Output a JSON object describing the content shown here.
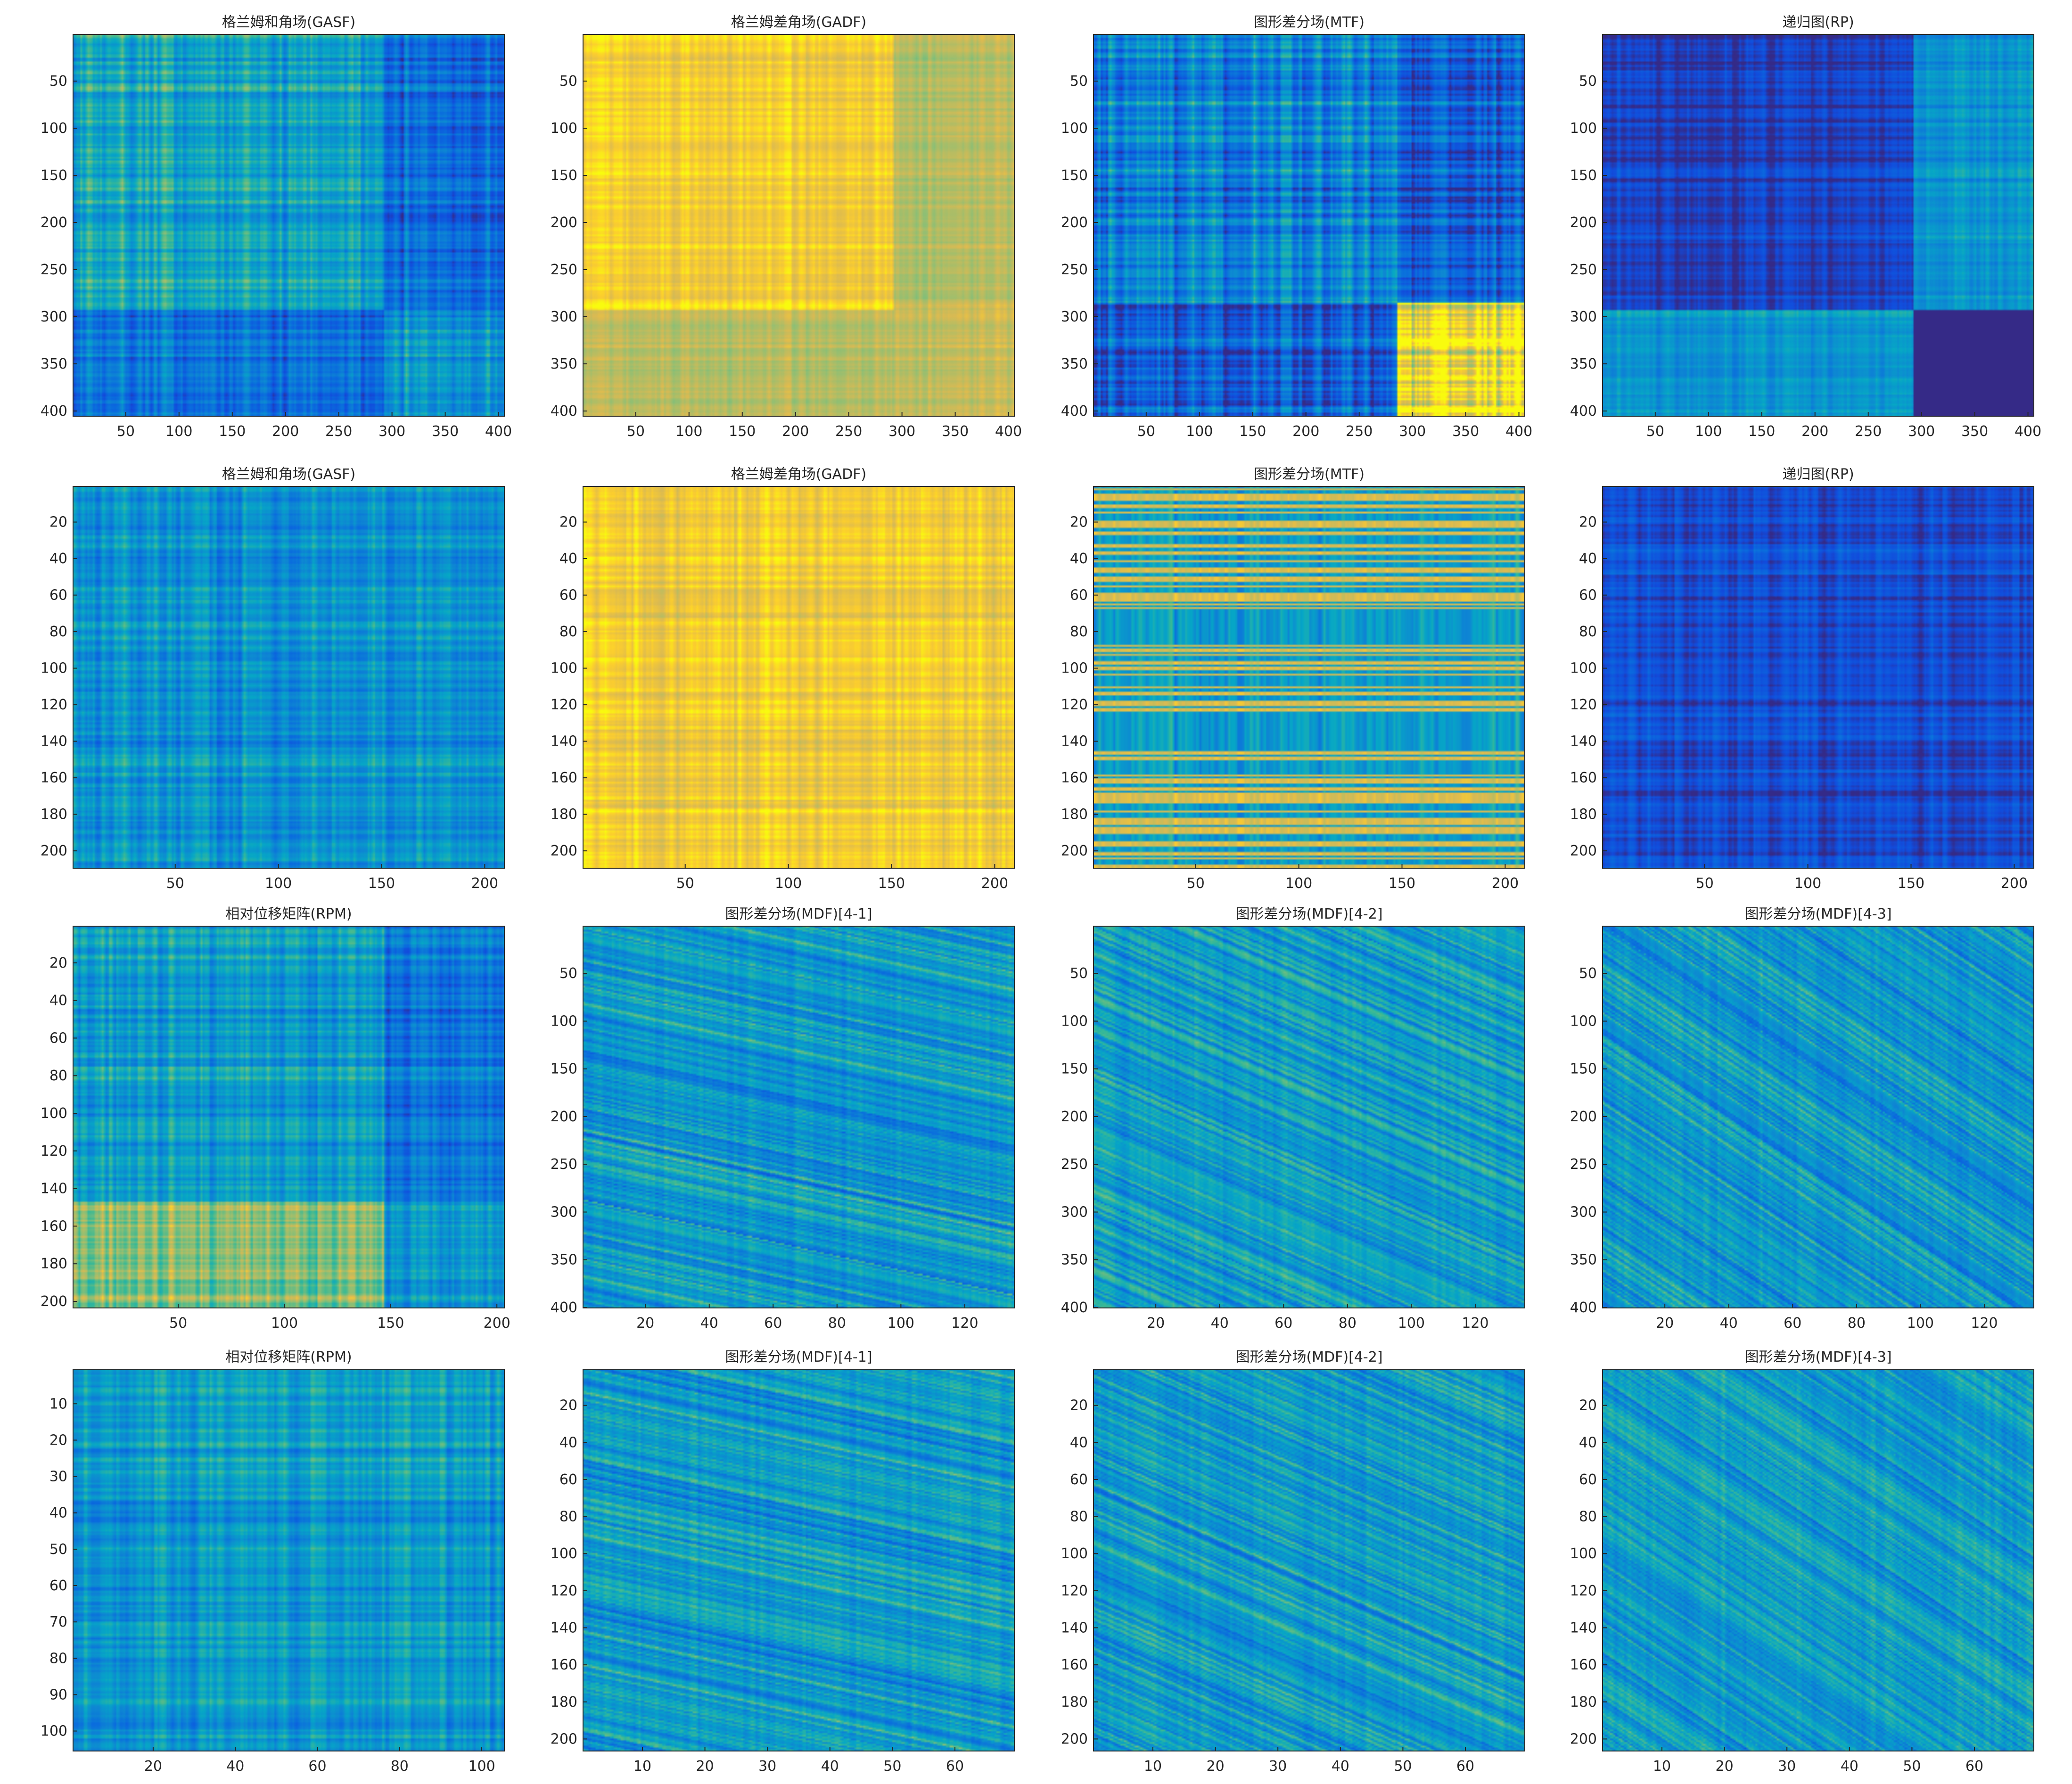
{
  "figure": {
    "type": "image-grid",
    "rows": 4,
    "cols": 4
  },
  "chart_data": [
    {
      "id": "r1c1",
      "type": "heatmap",
      "title": "格兰姆和角场(GASF)",
      "xlim": [
        0.5,
        405.5
      ],
      "ylim": [
        0.5,
        405.5
      ],
      "xticks": [
        50,
        100,
        150,
        200,
        250,
        300,
        350,
        400
      ],
      "yticks": [
        50,
        100,
        150,
        200,
        250,
        300,
        350,
        400
      ],
      "colormap": "parula",
      "pattern": "gasf",
      "seed": 11,
      "bias": 0.48,
      "contrast": 0.55,
      "breaks": [
        0.72
      ],
      "shift": -0.22,
      "quadrant": -0.05
    },
    {
      "id": "r1c2",
      "type": "heatmap",
      "title": "格兰姆差角场(GADF)",
      "xlim": [
        0.5,
        405.5
      ],
      "ylim": [
        0.5,
        405.5
      ],
      "xticks": [
        50,
        100,
        150,
        200,
        250,
        300,
        350,
        400
      ],
      "yticks": [
        50,
        100,
        150,
        200,
        250,
        300,
        350,
        400
      ],
      "colormap": "parula",
      "pattern": "gadf",
      "seed": 12,
      "bias": 0.93,
      "contrast": 0.18,
      "breaks": [
        0.72
      ],
      "shift": -0.12,
      "quadrant": -0.1
    },
    {
      "id": "r1c3",
      "type": "heatmap",
      "title": "图形差分场(MTF)",
      "xlim": [
        0.5,
        405.5
      ],
      "ylim": [
        0.5,
        405.5
      ],
      "xticks": [
        50,
        100,
        150,
        200,
        250,
        300,
        350,
        400
      ],
      "yticks": [
        50,
        100,
        150,
        200,
        250,
        300,
        350,
        400
      ],
      "colormap": "parula",
      "pattern": "mtf",
      "seed": 13,
      "bias": 0.35,
      "contrast": 0.75,
      "breaks": [
        0.7,
        0.71
      ],
      "shift": -0.15,
      "quadrant": 0.6
    },
    {
      "id": "r1c4",
      "type": "heatmap",
      "title": "递归图(RP)",
      "xlim": [
        0.5,
        405.5
      ],
      "ylim": [
        0.5,
        405.5
      ],
      "xticks": [
        50,
        100,
        150,
        200,
        250,
        300,
        350,
        400
      ],
      "yticks": [
        50,
        100,
        150,
        200,
        250,
        300,
        350,
        400
      ],
      "colormap": "parula",
      "pattern": "rp",
      "seed": 14,
      "bias": 0.08,
      "contrast": 0.35,
      "breaks": [
        0.72
      ],
      "shift": 0.35,
      "quadrant": -0.3
    },
    {
      "id": "r2c1",
      "type": "heatmap",
      "title": "格兰姆和角场(GASF)",
      "xlim": [
        0.5,
        209.5
      ],
      "ylim": [
        0.5,
        209.5
      ],
      "xticks": [
        50,
        100,
        150,
        200
      ],
      "yticks": [
        20,
        40,
        60,
        80,
        100,
        120,
        140,
        160,
        180,
        200
      ],
      "colormap": "parula",
      "pattern": "gasf",
      "seed": 21,
      "bias": 0.42,
      "contrast": 0.5,
      "breaks": [],
      "shift": 0,
      "quadrant": 0
    },
    {
      "id": "r2c2",
      "type": "heatmap",
      "title": "格兰姆差角场(GADF)",
      "xlim": [
        0.5,
        209.5
      ],
      "ylim": [
        0.5,
        209.5
      ],
      "xticks": [
        50,
        100,
        150,
        200
      ],
      "yticks": [
        20,
        40,
        60,
        80,
        100,
        120,
        140,
        160,
        180,
        200
      ],
      "colormap": "parula",
      "pattern": "gadf",
      "seed": 22,
      "bias": 0.92,
      "contrast": 0.22,
      "breaks": [],
      "shift": 0,
      "quadrant": 0
    },
    {
      "id": "r2c3",
      "type": "heatmap",
      "title": "图形差分场(MTF)",
      "xlim": [
        0.5,
        209.5
      ],
      "ylim": [
        0.5,
        209.5
      ],
      "xticks": [
        50,
        100,
        150,
        200
      ],
      "yticks": [
        20,
        40,
        60,
        80,
        100,
        120,
        140,
        160,
        180,
        200
      ],
      "colormap": "parula",
      "pattern": "mtf2",
      "seed": 23,
      "bias": 0.5,
      "contrast": 0.9,
      "breaks": [],
      "shift": 0,
      "quadrant": 0
    },
    {
      "id": "r2c4",
      "type": "heatmap",
      "title": "递归图(RP)",
      "xlim": [
        0.5,
        209.5
      ],
      "ylim": [
        0.5,
        209.5
      ],
      "xticks": [
        50,
        100,
        150,
        200
      ],
      "yticks": [
        20,
        40,
        60,
        80,
        100,
        120,
        140,
        160,
        180,
        200
      ],
      "colormap": "parula",
      "pattern": "rp",
      "seed": 24,
      "bias": 0.12,
      "contrast": 0.35,
      "breaks": [],
      "shift": 0,
      "quadrant": 0
    },
    {
      "id": "r3c1",
      "type": "heatmap",
      "title": "相对位移矩阵(RPM)",
      "xlim": [
        0.5,
        203.5
      ],
      "ylim": [
        0.5,
        203.5
      ],
      "xticks": [
        50,
        100,
        150,
        200
      ],
      "yticks": [
        20,
        40,
        60,
        80,
        100,
        120,
        140,
        160,
        180,
        200
      ],
      "colormap": "parula",
      "pattern": "rpm",
      "seed": 31,
      "bias": 0.45,
      "contrast": 0.5,
      "breaks": [
        0.72
      ],
      "shift": 0.0,
      "quadrant": 0
    },
    {
      "id": "r3c2",
      "type": "heatmap",
      "title": "图形差分场(MDF)[4-1]",
      "xlim": [
        0.5,
        135.5
      ],
      "ylim": [
        0.5,
        400.5
      ],
      "xticks": [
        20,
        40,
        60,
        80,
        100,
        120
      ],
      "yticks": [
        50,
        100,
        150,
        200,
        250,
        300,
        350,
        400
      ],
      "colormap": "parula",
      "pattern": "mdf",
      "seed": 32,
      "bias": 0.45,
      "contrast": 0.5,
      "slope": 0.25,
      "breaks": [],
      "shift": 0,
      "quadrant": 0
    },
    {
      "id": "r3c3",
      "type": "heatmap",
      "title": "图形差分场(MDF)[4-2]",
      "xlim": [
        0.5,
        135.5
      ],
      "ylim": [
        0.5,
        400.5
      ],
      "xticks": [
        20,
        40,
        60,
        80,
        100,
        120
      ],
      "yticks": [
        50,
        100,
        150,
        200,
        250,
        300,
        350,
        400
      ],
      "colormap": "parula",
      "pattern": "mdf",
      "seed": 33,
      "bias": 0.45,
      "contrast": 0.5,
      "slope": 0.5,
      "breaks": [],
      "shift": 0,
      "quadrant": 0
    },
    {
      "id": "r3c4",
      "type": "heatmap",
      "title": "图形差分场(MDF)[4-3]",
      "xlim": [
        0.5,
        135.5
      ],
      "ylim": [
        0.5,
        400.5
      ],
      "xticks": [
        20,
        40,
        60,
        80,
        100,
        120
      ],
      "yticks": [
        50,
        100,
        150,
        200,
        250,
        300,
        350,
        400
      ],
      "colormap": "parula",
      "pattern": "mdf",
      "seed": 34,
      "bias": 0.45,
      "contrast": 0.5,
      "slope": 0.75,
      "breaks": [],
      "shift": 0,
      "quadrant": 0
    },
    {
      "id": "r4c1",
      "type": "heatmap",
      "title": "相对位移矩阵(RPM)",
      "xlim": [
        0.5,
        105.5
      ],
      "ylim": [
        0.5,
        105.5
      ],
      "xticks": [
        20,
        40,
        60,
        80,
        100
      ],
      "yticks": [
        10,
        20,
        30,
        40,
        50,
        60,
        70,
        80,
        90,
        100
      ],
      "colormap": "parula",
      "pattern": "rpm2",
      "seed": 41,
      "bias": 0.45,
      "contrast": 0.45,
      "breaks": [],
      "shift": 0,
      "quadrant": 0
    },
    {
      "id": "r4c2",
      "type": "heatmap",
      "title": "图形差分场(MDF)[4-1]",
      "xlim": [
        0.5,
        69.5
      ],
      "ylim": [
        0.5,
        206.5
      ],
      "xticks": [
        10,
        20,
        30,
        40,
        50,
        60
      ],
      "yticks": [
        20,
        40,
        60,
        80,
        100,
        120,
        140,
        160,
        180,
        200
      ],
      "colormap": "parula",
      "pattern": "mdf",
      "seed": 42,
      "bias": 0.45,
      "contrast": 0.5,
      "slope": 0.25,
      "breaks": [],
      "shift": 0,
      "quadrant": 0
    },
    {
      "id": "r4c3",
      "type": "heatmap",
      "title": "图形差分场(MDF)[4-2]",
      "xlim": [
        0.5,
        69.5
      ],
      "ylim": [
        0.5,
        206.5
      ],
      "xticks": [
        10,
        20,
        30,
        40,
        50,
        60
      ],
      "yticks": [
        20,
        40,
        60,
        80,
        100,
        120,
        140,
        160,
        180,
        200
      ],
      "colormap": "parula",
      "pattern": "mdf",
      "seed": 43,
      "bias": 0.45,
      "contrast": 0.5,
      "slope": 0.5,
      "breaks": [],
      "shift": 0,
      "quadrant": 0
    },
    {
      "id": "r4c4",
      "type": "heatmap",
      "title": "图形差分场(MDF)[4-3]",
      "xlim": [
        0.5,
        69.5
      ],
      "ylim": [
        0.5,
        206.5
      ],
      "xticks": [
        10,
        20,
        30,
        40,
        50,
        60
      ],
      "yticks": [
        20,
        40,
        60,
        80,
        100,
        120,
        140,
        160,
        180,
        200
      ],
      "colormap": "parula",
      "pattern": "mdf",
      "seed": 44,
      "bias": 0.45,
      "contrast": 0.5,
      "slope": 0.75,
      "breaks": [],
      "shift": 0,
      "quadrant": 0
    }
  ]
}
